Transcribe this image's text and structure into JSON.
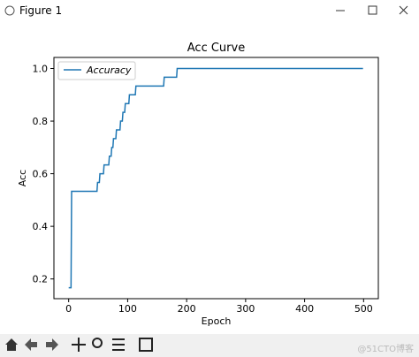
{
  "window": {
    "title": "Figure 1",
    "watermark": "@51CTO博客"
  },
  "chart_data": {
    "type": "line",
    "title": "Acc Curve",
    "x_label": "Epoch",
    "y_label": "Acc",
    "series": [
      {
        "name": "Accuracy",
        "color": "#1f77b4",
        "x": [
          0,
          4,
          5,
          48,
          49,
          52,
          53,
          59,
          60,
          68,
          69,
          72,
          73,
          75,
          76,
          80,
          81,
          87,
          88,
          91,
          92,
          95,
          96,
          102,
          103,
          113,
          114,
          161,
          162,
          183,
          184,
          499
        ],
        "values": [
          0.1667,
          0.1667,
          0.5333,
          0.5333,
          0.5667,
          0.5667,
          0.6,
          0.6,
          0.6333,
          0.6333,
          0.6667,
          0.6667,
          0.7,
          0.7,
          0.7333,
          0.7333,
          0.7667,
          0.7667,
          0.8,
          0.8,
          0.8333,
          0.8333,
          0.8667,
          0.8667,
          0.9,
          0.9,
          0.9333,
          0.9333,
          0.9667,
          0.9667,
          1.0,
          1.0
        ]
      }
    ],
    "xlim": [
      -25,
      525
    ],
    "xticks": [
      0,
      100,
      200,
      300,
      400,
      500
    ],
    "ylim": [
      0.125,
      1.042
    ],
    "yticks": [
      0.2,
      0.4,
      0.6,
      0.8,
      {
        "value": 1,
        "label": "1.0"
      }
    ],
    "legend": "upper left"
  }
}
